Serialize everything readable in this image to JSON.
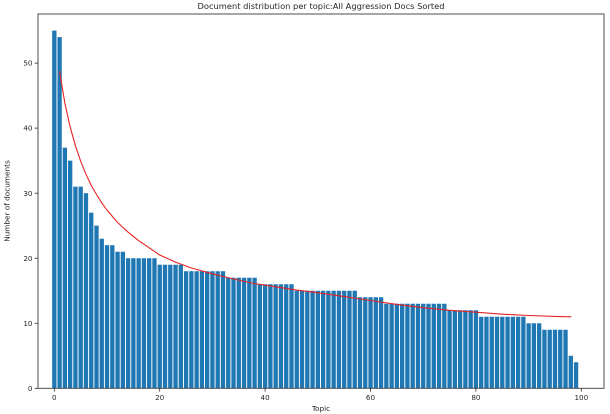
{
  "figure": {
    "background_color": "#ffffff",
    "spine_color": "#3c3c3c",
    "tick_color": "#262626",
    "text_color": "#262626"
  },
  "chart_data": {
    "type": "bar",
    "title": "Document distribution per topic:All Aggression Docs Sorted",
    "xlabel": "Topic",
    "ylabel": "Number of documents",
    "bar_color": "#1f77b4",
    "grid": false,
    "legend": null,
    "xlim": [
      -3.1,
      104.3
    ],
    "ylim": [
      0,
      57.55
    ],
    "xticks": [
      0,
      20,
      40,
      60,
      80,
      100
    ],
    "yticks": [
      0,
      10,
      20,
      30,
      40,
      50
    ],
    "categories": [
      0,
      1,
      2,
      3,
      4,
      5,
      6,
      7,
      8,
      9,
      10,
      11,
      12,
      13,
      14,
      15,
      16,
      17,
      18,
      19,
      20,
      21,
      22,
      23,
      24,
      25,
      26,
      27,
      28,
      29,
      30,
      31,
      32,
      33,
      34,
      35,
      36,
      37,
      38,
      39,
      40,
      41,
      42,
      43,
      44,
      45,
      46,
      47,
      48,
      49,
      50,
      51,
      52,
      53,
      54,
      55,
      56,
      57,
      58,
      59,
      60,
      61,
      62,
      63,
      64,
      65,
      66,
      67,
      68,
      69,
      70,
      71,
      72,
      73,
      74,
      75,
      76,
      77,
      78,
      79,
      80,
      81,
      82,
      83,
      84,
      85,
      86,
      87,
      88,
      89,
      90,
      91,
      92,
      93,
      94,
      95,
      96,
      97,
      98,
      99
    ],
    "values": [
      55,
      54,
      37,
      35,
      31,
      31,
      30,
      27,
      25,
      23,
      22,
      22,
      21,
      21,
      20,
      20,
      20,
      20,
      20,
      20,
      19,
      19,
      19,
      19,
      19,
      18,
      18,
      18,
      18,
      18,
      18,
      18,
      18,
      17,
      17,
      17,
      17,
      17,
      17,
      16,
      16,
      16,
      16,
      16,
      16,
      16,
      15,
      15,
      15,
      15,
      15,
      15,
      15,
      15,
      15,
      15,
      15,
      15,
      14,
      14,
      14,
      14,
      14,
      13,
      13,
      13,
      13,
      13,
      13,
      13,
      13,
      13,
      13,
      13,
      13,
      12,
      12,
      12,
      12,
      12,
      12,
      11,
      11,
      11,
      11,
      11,
      11,
      11,
      11,
      11,
      10,
      10,
      10,
      9,
      9,
      9,
      9,
      9,
      5,
      4
    ],
    "trend_line": {
      "name": "fitted-distribution-curve",
      "color": "#e62325",
      "points": [
        [
          1,
          48.7
        ],
        [
          2,
          43.8
        ],
        [
          3,
          40.2
        ],
        [
          4,
          37.3
        ],
        [
          5,
          34.9
        ],
        [
          6,
          32.9
        ],
        [
          7,
          31.2
        ],
        [
          8,
          29.8
        ],
        [
          9,
          28.5
        ],
        [
          10,
          27.4
        ],
        [
          12,
          25.5
        ],
        [
          14,
          24.0
        ],
        [
          16,
          22.7
        ],
        [
          18,
          21.6
        ],
        [
          20,
          20.5
        ],
        [
          23,
          19.4
        ],
        [
          26,
          18.5
        ],
        [
          30,
          17.6
        ],
        [
          34,
          16.8
        ],
        [
          38,
          16.1
        ],
        [
          42,
          15.6
        ],
        [
          46,
          15.1
        ],
        [
          50,
          14.7
        ],
        [
          55,
          14.1
        ],
        [
          60,
          13.5
        ],
        [
          65,
          12.9
        ],
        [
          70,
          12.4
        ],
        [
          75,
          12.0
        ],
        [
          80,
          11.7
        ],
        [
          85,
          11.4
        ],
        [
          90,
          11.2
        ],
        [
          95,
          11.05
        ],
        [
          98,
          11.0
        ]
      ]
    }
  }
}
